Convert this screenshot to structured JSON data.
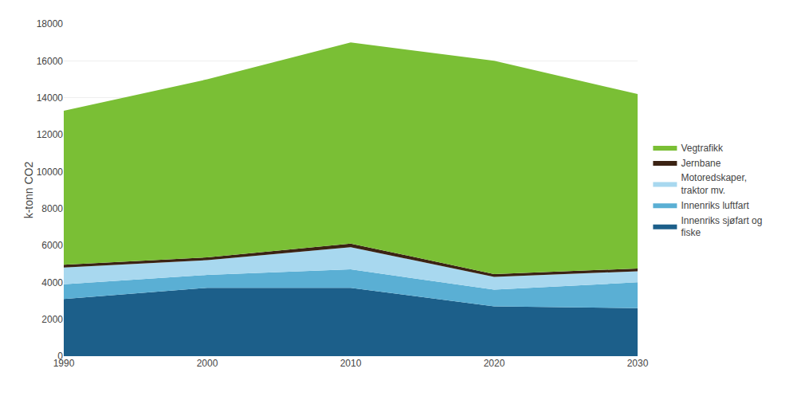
{
  "chart_data": {
    "type": "area",
    "stacked": true,
    "x": [
      1990,
      2000,
      2010,
      2020,
      2030
    ],
    "series": [
      {
        "name": "Innenriks sjøfart og\nfiske",
        "color": "#1c5f8a",
        "values": [
          3100,
          3700,
          3700,
          2700,
          2600
        ]
      },
      {
        "name": "Innenriks luftfart",
        "color": "#5aafd4",
        "values": [
          800,
          700,
          1000,
          900,
          1400
        ]
      },
      {
        "name": "Motoredskaper,\ntraktor mv.",
        "color": "#a8d8ef",
        "values": [
          900,
          800,
          1200,
          700,
          600
        ]
      },
      {
        "name": "Jernbane",
        "color": "#3b2314",
        "values": [
          150,
          150,
          200,
          150,
          150
        ]
      },
      {
        "name": "Vegtrafikk",
        "color": "#7abf35",
        "values": [
          8350,
          9650,
          10900,
          11550,
          9450
        ]
      }
    ],
    "y_label": "k-tonn CO2",
    "xlim": [
      1990,
      2030
    ],
    "xticks": [
      1990,
      2000,
      2010,
      2020,
      2030
    ],
    "ylim": [
      0,
      18000
    ],
    "yticks": [
      0,
      2000,
      4000,
      6000,
      8000,
      10000,
      12000,
      14000,
      16000,
      18000
    ],
    "grid": "y",
    "legend": "right"
  }
}
